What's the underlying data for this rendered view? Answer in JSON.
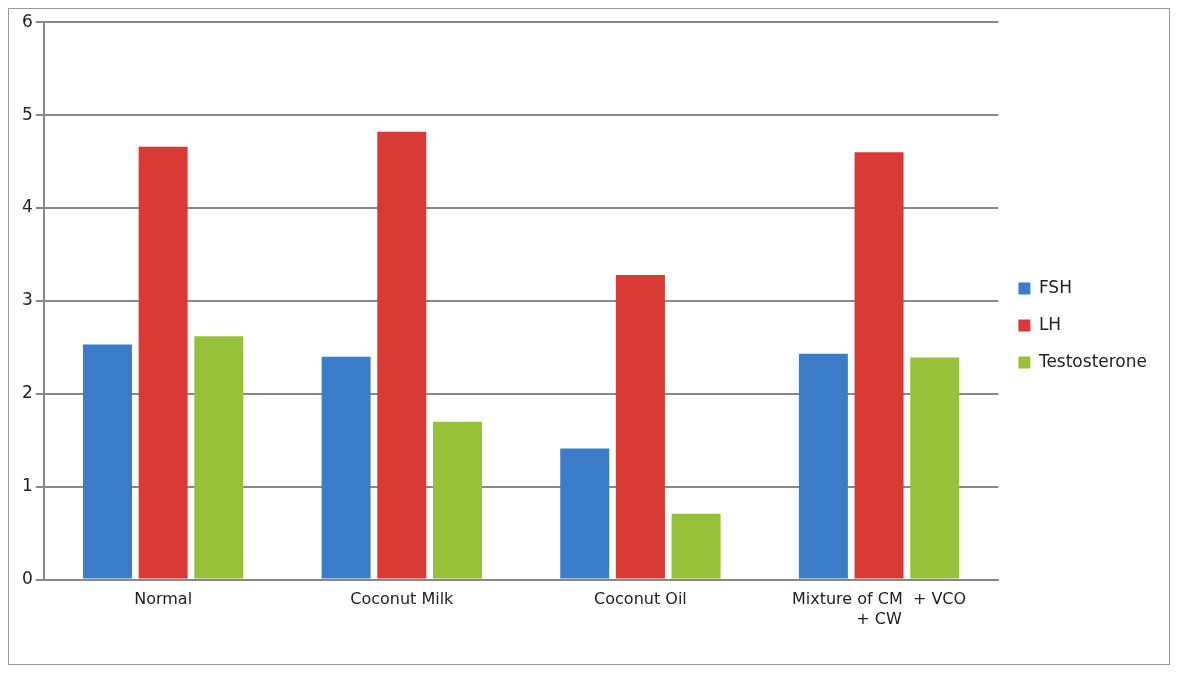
{
  "chart_data": {
    "type": "bar",
    "categories": [
      "Normal",
      "Coconut Milk",
      "Coconut Oil",
      "Mixture of CM  + VCO + CW"
    ],
    "series": [
      {
        "name": "FSH",
        "color": "#3b7dc9",
        "values": [
          2.53,
          2.4,
          1.41,
          2.43
        ]
      },
      {
        "name": "LH",
        "color": "#d93a35",
        "values": [
          4.66,
          4.82,
          3.28,
          4.6
        ]
      },
      {
        "name": "Testosterone",
        "color": "#98c13a",
        "values": [
          2.62,
          1.7,
          0.71,
          2.39
        ]
      }
    ],
    "ylim": [
      0,
      6
    ],
    "yticks": [
      0,
      1,
      2,
      3,
      4,
      5,
      6
    ],
    "grid": "y",
    "legend": "right"
  }
}
